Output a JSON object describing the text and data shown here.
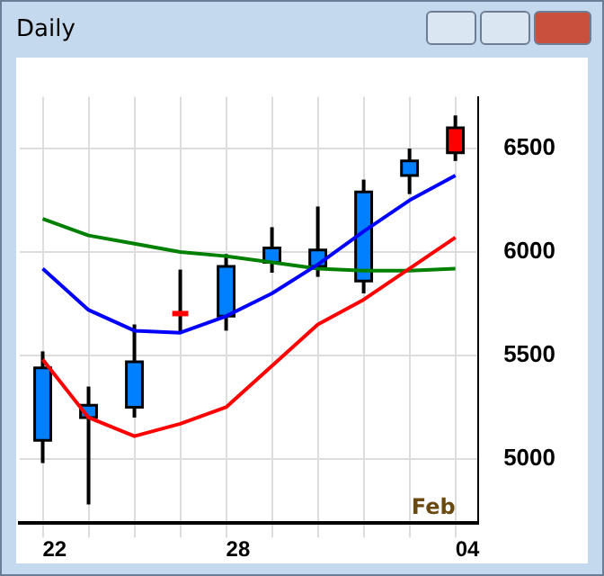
{
  "chart_data": {
    "type": "candlestick",
    "title": "Daily",
    "categories": [
      "22",
      null,
      null,
      null,
      "28",
      null,
      null,
      null,
      null,
      "04"
    ],
    "ohlc": [
      [
        5090,
        5520,
        4980,
        5440
      ],
      [
        5200,
        5350,
        4780,
        5260
      ],
      [
        5250,
        5650,
        5200,
        5470
      ],
      [
        5705,
        5915,
        5610,
        5700
      ],
      [
        5690,
        5990,
        5620,
        5930
      ],
      [
        5950,
        6120,
        5900,
        6020
      ],
      [
        5930,
        6220,
        5880,
        6010
      ],
      [
        5860,
        6350,
        5800,
        6290
      ],
      [
        6370,
        6500,
        6280,
        6440
      ],
      [
        6600,
        6660,
        6440,
        6480
      ]
    ],
    "colors": [
      "#0080ff",
      "#0080ff",
      "#0080ff",
      "#ff0000",
      "#0080ff",
      "#0080ff",
      "#0080ff",
      "#0080ff",
      "#0080ff",
      "#ff0000"
    ],
    "series": [
      {
        "type": "line",
        "color": "#0000ff",
        "values": [
          5920,
          5720,
          5620,
          5610,
          5690,
          5800,
          5940,
          6100,
          6250,
          6370
        ]
      },
      {
        "type": "line",
        "color": "#ff0000",
        "values": [
          5480,
          5200,
          5110,
          5170,
          5250,
          5450,
          5650,
          5770,
          5920,
          6070
        ]
      },
      {
        "type": "line",
        "color": "#008000",
        "values": [
          6160,
          6080,
          6040,
          6000,
          5980,
          5950,
          5920,
          5910,
          5910,
          5920
        ]
      }
    ],
    "ylim": [
      4690,
      6750
    ],
    "yticks": [
      5000,
      5500,
      6000,
      6500
    ],
    "grid": true,
    "annotations": [
      "Feb"
    ]
  }
}
